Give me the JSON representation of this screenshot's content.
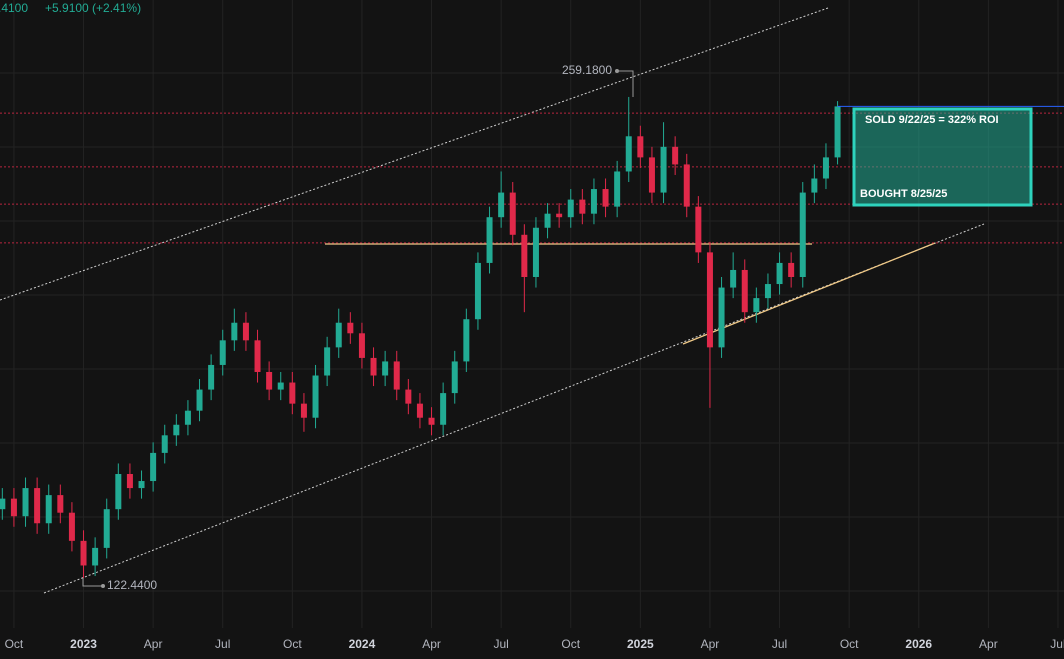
{
  "chart_data": {
    "type": "candlestick",
    "header": ".4100",
    "change": "+5.9100 (+2.41%)",
    "annotations": {
      "high": "259.1800",
      "low": "122.4400",
      "sold": "SOLD 9/22/25 = 322% ROI",
      "bought": "BOUGHT 8/25/25"
    },
    "xlim": [
      -0.6,
      45.26
    ],
    "ylim": [
      110.5,
      286.74
    ],
    "xticks": [
      {
        "value": 0,
        "label": "Oct"
      },
      {
        "value": 3,
        "label": "2023"
      },
      {
        "value": 6,
        "label": "Apr"
      },
      {
        "value": 9,
        "label": "Jul"
      },
      {
        "value": 12,
        "label": "Oct"
      },
      {
        "value": 15,
        "label": "2024"
      },
      {
        "value": 18,
        "label": "Apr"
      },
      {
        "value": 21,
        "label": "Jul"
      },
      {
        "value": 24,
        "label": "Oct"
      },
      {
        "value": 27,
        "label": "2025"
      },
      {
        "value": 30,
        "label": "Apr"
      },
      {
        "value": 33,
        "label": "Jul"
      },
      {
        "value": 36,
        "label": "Oct"
      },
      {
        "value": 39,
        "label": "2026"
      },
      {
        "value": 42,
        "label": "Apr"
      },
      {
        "value": 45,
        "label": "Jul"
      }
    ],
    "levels": [
      254.6,
      239.3,
      228.7,
      217.7
    ],
    "up_color": "#22ab94",
    "down_color": "#e0294a",
    "x": [
      -0.5,
      0,
      0.5,
      1,
      1.5,
      2,
      2.5,
      3,
      3.5,
      4,
      4.5,
      5,
      5.5,
      6,
      6.5,
      7,
      7.5,
      8,
      8.5,
      9,
      9.5,
      10,
      10.5,
      11,
      11.5,
      12,
      12.5,
      13,
      13.5,
      14,
      14.5,
      15,
      15.5,
      16,
      16.5,
      17,
      17.5,
      18,
      18.5,
      19,
      19.5,
      20,
      20.5,
      21,
      21.5,
      22,
      22.5,
      23,
      23.5,
      24,
      24.5,
      25,
      25.5,
      26,
      26.5,
      27,
      27.5,
      28,
      28.5,
      29,
      29.5,
      30,
      30.5,
      31,
      31.5,
      32,
      32.5,
      33,
      33.5,
      34,
      34.5,
      35,
      35.5
    ],
    "open": [
      142,
      145,
      140,
      148,
      138,
      146,
      141,
      133,
      126,
      131,
      142,
      152,
      148,
      150,
      158,
      163,
      166,
      170,
      176,
      183,
      190,
      195,
      190,
      181,
      176,
      178,
      172,
      168,
      180,
      188,
      195,
      192,
      185,
      180,
      184,
      176,
      172,
      168,
      166,
      175,
      184,
      196,
      212,
      225,
      232,
      220,
      208,
      222,
      226,
      225,
      230,
      226,
      233,
      228,
      238,
      248,
      242,
      232,
      245,
      240,
      228,
      215,
      188,
      205,
      210,
      198,
      202,
      206,
      212,
      208,
      232,
      236,
      242
    ],
    "high": [
      148,
      148,
      151,
      151,
      149,
      149,
      144,
      136,
      134,
      145,
      155,
      155,
      153,
      161,
      166,
      169,
      173,
      179,
      186,
      193,
      199,
      198,
      193,
      184,
      181,
      181,
      175,
      183,
      191,
      199,
      198,
      195,
      188,
      187,
      187,
      179,
      175,
      171,
      178,
      187,
      199,
      215,
      228,
      238,
      235,
      223,
      225,
      229,
      229,
      233,
      233,
      236,
      236,
      241,
      259.18,
      251,
      245,
      252,
      248,
      243,
      231,
      218,
      208,
      215,
      213,
      205,
      209,
      215,
      215,
      235,
      240,
      246,
      258
    ],
    "low": [
      139,
      137,
      137,
      135,
      135,
      138,
      130,
      122.44,
      123,
      128,
      139,
      145,
      145,
      147,
      155,
      160,
      163,
      167,
      173,
      180,
      187,
      187,
      178,
      173,
      173,
      169,
      164,
      165,
      177,
      185,
      189,
      182,
      177,
      177,
      173,
      169,
      165,
      163,
      163,
      172,
      181,
      193,
      209,
      222,
      217,
      198,
      205,
      219,
      222,
      222,
      223,
      223,
      225,
      225,
      235,
      239,
      229,
      229,
      237,
      225,
      212,
      170.8,
      185,
      202,
      195,
      195,
      199,
      203,
      205,
      205,
      229,
      233,
      240
    ],
    "close": [
      145,
      140,
      148,
      138,
      146,
      141,
      133,
      126,
      131,
      142,
      152,
      148,
      150,
      158,
      163,
      166,
      170,
      176,
      183,
      190,
      195,
      190,
      181,
      176,
      178,
      172,
      168,
      180,
      188,
      195,
      192,
      185,
      180,
      184,
      176,
      172,
      168,
      166,
      175,
      184,
      196,
      212,
      225,
      232,
      220,
      208,
      222,
      226,
      225,
      230,
      226,
      233,
      228,
      238,
      248,
      242,
      232,
      245,
      240,
      228,
      215,
      188,
      205,
      210,
      198,
      202,
      206,
      212,
      208,
      232,
      236,
      242,
      256.5
    ]
  }
}
